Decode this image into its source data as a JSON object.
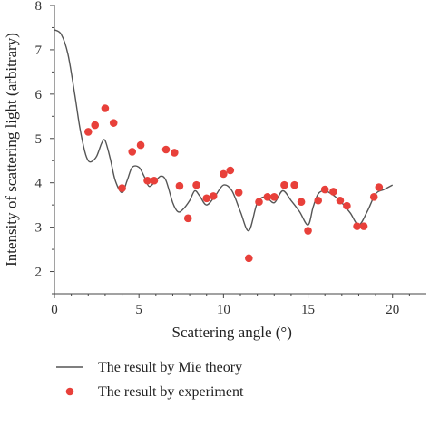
{
  "chart_data": {
    "type": "line",
    "xlabel": "Scattering angle (°)",
    "ylabel": "Intensity of scattering light (arbitrary)",
    "xlim": [
      0,
      22
    ],
    "ylim": [
      1.5,
      8
    ],
    "xticks": [
      "0",
      "5",
      "10",
      "15",
      "20"
    ],
    "yticks": [
      "2",
      "3",
      "4",
      "5",
      "6",
      "7",
      "8"
    ],
    "legend_position": "bottom-left, below plot",
    "series": [
      {
        "name": "The result by Mie theory",
        "type": "line",
        "color": "#555555",
        "x": [
          0,
          0.4,
          0.8,
          1.2,
          1.5,
          1.8,
          2.0,
          2.2,
          2.5,
          2.8,
          3.0,
          3.3,
          3.6,
          4.0,
          4.3,
          4.6,
          5.0,
          5.3,
          5.6,
          6.0,
          6.3,
          6.6,
          7.0,
          7.3,
          7.6,
          8.0,
          8.3,
          8.6,
          9.0,
          9.5,
          10.0,
          10.5,
          11.0,
          11.5,
          12.0,
          12.5,
          13.0,
          13.5,
          14.0,
          14.5,
          15.0,
          15.3,
          15.6,
          16.0,
          16.5,
          17.0,
          17.5,
          18.0,
          18.5,
          19.0,
          19.5,
          20.0
        ],
        "y": [
          7.45,
          7.35,
          6.9,
          6.0,
          5.25,
          4.7,
          4.5,
          4.48,
          4.6,
          4.9,
          4.95,
          4.55,
          4.05,
          3.78,
          4.05,
          4.35,
          4.35,
          4.15,
          3.92,
          4.05,
          4.15,
          4.05,
          3.55,
          3.35,
          3.4,
          3.6,
          3.82,
          3.7,
          3.5,
          3.7,
          3.95,
          3.82,
          3.35,
          2.92,
          3.55,
          3.68,
          3.55,
          3.82,
          3.6,
          3.35,
          3.05,
          3.45,
          3.75,
          3.82,
          3.72,
          3.55,
          3.32,
          3.05,
          3.35,
          3.75,
          3.85,
          3.95
        ]
      },
      {
        "name": "The result by experiment",
        "type": "scatter",
        "color": "#e8403a",
        "x": [
          2.0,
          2.4,
          3.0,
          3.5,
          4.0,
          4.6,
          5.1,
          5.5,
          5.9,
          6.6,
          7.1,
          7.4,
          7.9,
          8.4,
          9.0,
          9.4,
          10.0,
          10.4,
          10.9,
          11.5,
          12.1,
          12.6,
          13.0,
          13.6,
          14.2,
          14.6,
          15.0,
          15.6,
          16.0,
          16.5,
          16.9,
          17.3,
          17.9,
          18.3,
          18.9,
          19.2
        ],
        "y": [
          5.15,
          5.3,
          5.68,
          5.35,
          3.88,
          4.7,
          4.85,
          4.05,
          4.05,
          4.75,
          4.68,
          3.93,
          3.2,
          3.95,
          3.65,
          3.7,
          4.2,
          4.28,
          3.78,
          2.3,
          3.57,
          3.68,
          3.68,
          3.95,
          3.95,
          3.57,
          2.92,
          3.6,
          3.85,
          3.8,
          3.6,
          3.48,
          3.02,
          3.02,
          3.68,
          3.9
        ]
      }
    ]
  }
}
